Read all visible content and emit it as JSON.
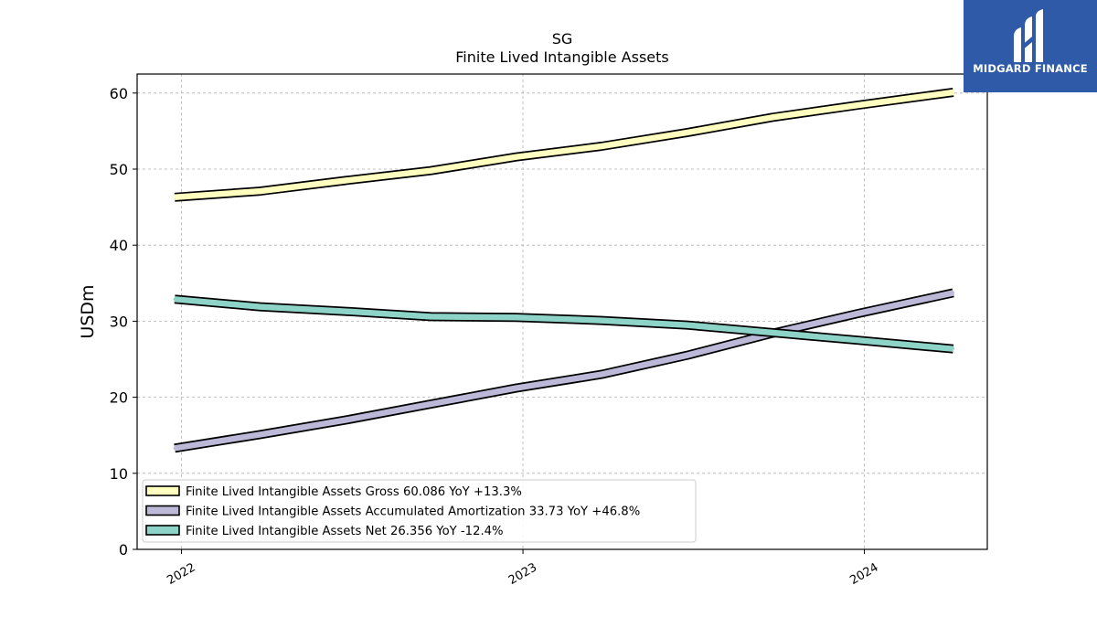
{
  "brand": {
    "name": "MIDGARD FINANCE",
    "bg_color": "#2f5aa8"
  },
  "chart_data": {
    "type": "line",
    "title": "SG",
    "subtitle": "Finite Lived Intangible Assets",
    "ylabel": "USDm",
    "xlabel": "",
    "ylim": [
      0,
      62.5
    ],
    "xlim": [
      2021.87,
      2024.36
    ],
    "yticks": [
      0,
      10,
      20,
      30,
      40,
      50,
      60
    ],
    "xticks": [
      {
        "value": 2022,
        "label": "2022"
      },
      {
        "value": 2023,
        "label": "2023"
      },
      {
        "value": 2024,
        "label": "2024"
      }
    ],
    "grid": true,
    "legend_position": "lower-left",
    "x": [
      2021.98,
      2022.23,
      2022.48,
      2022.73,
      2022.98,
      2023.23,
      2023.48,
      2023.73,
      2023.98,
      2024.26
    ],
    "series": [
      {
        "name": "Finite Lived Intangible Assets Gross",
        "legend_label": "Finite Lived Intangible Assets Gross  60.086 YoY +13.3%",
        "color": "#ffffbf",
        "values": [
          46.3,
          47.1,
          48.5,
          49.8,
          51.6,
          53.0,
          54.8,
          56.8,
          58.4,
          60.1
        ]
      },
      {
        "name": "Finite Lived Intangible Assets Accumulated Amortization",
        "legend_label": "Finite Lived Intangible Assets Accumulated Amortization  33.73 YoY +46.8%",
        "color": "#bcb8d8",
        "values": [
          13.3,
          15.1,
          17.0,
          19.1,
          21.2,
          23.0,
          25.5,
          28.4,
          31.0,
          33.73
        ]
      },
      {
        "name": "Finite Lived Intangible Assets Net",
        "legend_label": "Finite Lived Intangible Assets Net  26.356 YoY -12.4%",
        "color": "#8dd3c7",
        "values": [
          32.9,
          31.9,
          31.3,
          30.6,
          30.5,
          30.1,
          29.5,
          28.5,
          27.5,
          26.36
        ]
      }
    ]
  }
}
